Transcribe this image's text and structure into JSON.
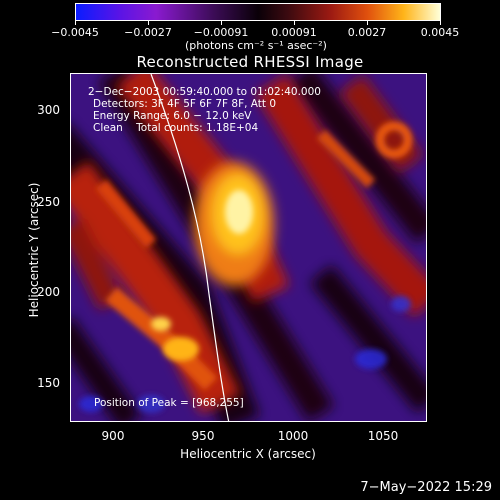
{
  "colorbar": {
    "ticks": [
      "−0.0045",
      "−0.0027",
      "−0.00091",
      "0.00091",
      "0.0027",
      "0.0045"
    ],
    "unit": "(photons cm⁻² s⁻¹ asec⁻²)"
  },
  "title": "Reconstructed RHESSI Image",
  "info": {
    "time_range": "2−Dec−2003 00:59:40.000 to 01:02:40.000",
    "detectors": "Detectors: 3F 4F 5F 6F 7F 8F, Att 0",
    "energy": "Energy Range: 6.0 − 12.0 keV",
    "clean": "Clean    Total counts: 1.18E+04",
    "peak": "Position of Peak = [968,255]"
  },
  "axes": {
    "x_ticks": [
      "900",
      "950",
      "1000",
      "1050"
    ],
    "y_ticks": [
      "300",
      "250",
      "200",
      "150"
    ],
    "xlabel": "Heliocentric X (arcsec)",
    "ylabel": "Heliocentric Y (arcsec)"
  },
  "timestamp": "7−May−2022 15:29"
}
